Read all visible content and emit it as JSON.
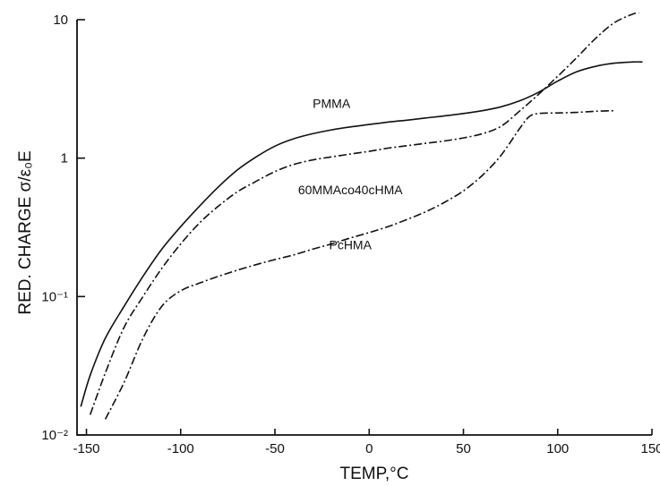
{
  "chart_data": {
    "type": "line",
    "xlabel": "TEMP,°C",
    "ylabel": "RED. CHARGE σ/ε₀E",
    "xlim": [
      -155,
      150
    ],
    "ylim": [
      0.01,
      10
    ],
    "yscale": "log",
    "grid": false,
    "xticks": [
      -150,
      -100,
      -50,
      0,
      50,
      100,
      150
    ],
    "xtick_labels": [
      "-150",
      "-100",
      "-50",
      "0",
      "50",
      "100",
      "150"
    ],
    "yticks": [
      0.01,
      0.1,
      1,
      10
    ],
    "ytick_labels": [
      "10⁻²",
      "10⁻¹",
      "1",
      "10"
    ],
    "series": [
      {
        "name": "PMMA",
        "style": "solid",
        "x": [
          -153,
          -148,
          -140,
          -130,
          -120,
          -110,
          -100,
          -90,
          -80,
          -70,
          -60,
          -50,
          -40,
          -30,
          -20,
          -10,
          0,
          10,
          20,
          30,
          40,
          50,
          60,
          70,
          80,
          90,
          100,
          110,
          120,
          130,
          140,
          145
        ],
        "y": [
          0.016,
          0.027,
          0.05,
          0.085,
          0.14,
          0.22,
          0.32,
          0.45,
          0.62,
          0.82,
          1.02,
          1.22,
          1.38,
          1.5,
          1.6,
          1.68,
          1.75,
          1.82,
          1.88,
          1.95,
          2.02,
          2.1,
          2.2,
          2.35,
          2.6,
          3.0,
          3.6,
          4.2,
          4.6,
          4.85,
          4.95,
          4.95
        ]
      },
      {
        "name": "60MMAco40cHMA",
        "style": "dash-dot",
        "x": [
          -148,
          -140,
          -130,
          -120,
          -110,
          -100,
          -90,
          -80,
          -70,
          -60,
          -50,
          -40,
          -30,
          -20,
          -10,
          0,
          10,
          20,
          30,
          40,
          50,
          60,
          70,
          80,
          90,
          100,
          110,
          120,
          130,
          140,
          143
        ],
        "y": [
          0.014,
          0.028,
          0.06,
          0.1,
          0.16,
          0.24,
          0.34,
          0.45,
          0.57,
          0.68,
          0.8,
          0.9,
          0.97,
          1.02,
          1.07,
          1.12,
          1.18,
          1.23,
          1.28,
          1.33,
          1.4,
          1.5,
          1.7,
          2.2,
          2.9,
          3.9,
          5.3,
          7.3,
          9.5,
          11.0,
          11.2
        ]
      },
      {
        "name": "PcHMA",
        "style": "dash-dot",
        "x": [
          -140,
          -130,
          -120,
          -110,
          -100,
          -90,
          -80,
          -70,
          -60,
          -50,
          -40,
          -30,
          -20,
          -10,
          0,
          10,
          20,
          30,
          40,
          50,
          60,
          70,
          80,
          85,
          90,
          100,
          110,
          120,
          130
        ],
        "y": [
          0.013,
          0.024,
          0.05,
          0.085,
          0.11,
          0.125,
          0.14,
          0.155,
          0.17,
          0.185,
          0.2,
          0.22,
          0.24,
          0.265,
          0.29,
          0.32,
          0.36,
          0.41,
          0.48,
          0.58,
          0.75,
          1.05,
          1.65,
          2.0,
          2.1,
          2.12,
          2.14,
          2.18,
          2.2
        ]
      }
    ],
    "annotations": [
      {
        "text": "PMMA",
        "x": -20,
        "y": 2.3
      },
      {
        "text": "60MMAco40cHMA",
        "x": -10,
        "y": 0.55
      },
      {
        "text": "PcHMA",
        "x": -10,
        "y": 0.22
      }
    ]
  }
}
